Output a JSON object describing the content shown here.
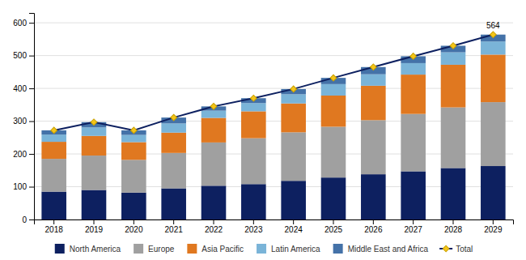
{
  "chart_data": {
    "type": "bar",
    "stacked": true,
    "grid": true,
    "legend": "bottom",
    "categories": [
      "2018",
      "2019",
      "2020",
      "2021",
      "2022",
      "2023",
      "2024",
      "2025",
      "2026",
      "2027",
      "2028",
      "2029"
    ],
    "series": [
      {
        "name": "North America",
        "color": "#0d2060",
        "values": [
          85,
          90,
          82,
          95,
          103,
          108,
          118,
          128,
          138,
          147,
          157,
          163
        ]
      },
      {
        "name": "Europe",
        "color": "#a0a0a0",
        "values": [
          100,
          105,
          100,
          108,
          132,
          140,
          148,
          155,
          165,
          175,
          185,
          195
        ]
      },
      {
        "name": "Asia Pacific",
        "color": "#e07820",
        "values": [
          52,
          60,
          54,
          62,
          75,
          82,
          88,
          95,
          105,
          120,
          130,
          145
        ]
      },
      {
        "name": "Latin America",
        "color": "#7ab4d8",
        "values": [
          22,
          26,
          22,
          28,
          22,
          25,
          28,
          35,
          35,
          35,
          38,
          40
        ]
      },
      {
        "name": "Middle East and Africa",
        "color": "#4472a8",
        "values": [
          13,
          16,
          14,
          18,
          13,
          15,
          16,
          19,
          22,
          21,
          20,
          21
        ]
      },
      {
        "name": "Total",
        "type": "line",
        "marker": "diamond",
        "color": "#0d2060",
        "values": [
          272,
          297,
          272,
          311,
          345,
          370,
          398,
          432,
          465,
          498,
          530,
          564
        ]
      }
    ],
    "annotations": [
      {
        "text": "564",
        "x": "2029",
        "y": 564
      }
    ],
    "ylim": [
      0,
      630
    ],
    "yticks": [
      0,
      100,
      200,
      300,
      400,
      500,
      600
    ]
  }
}
